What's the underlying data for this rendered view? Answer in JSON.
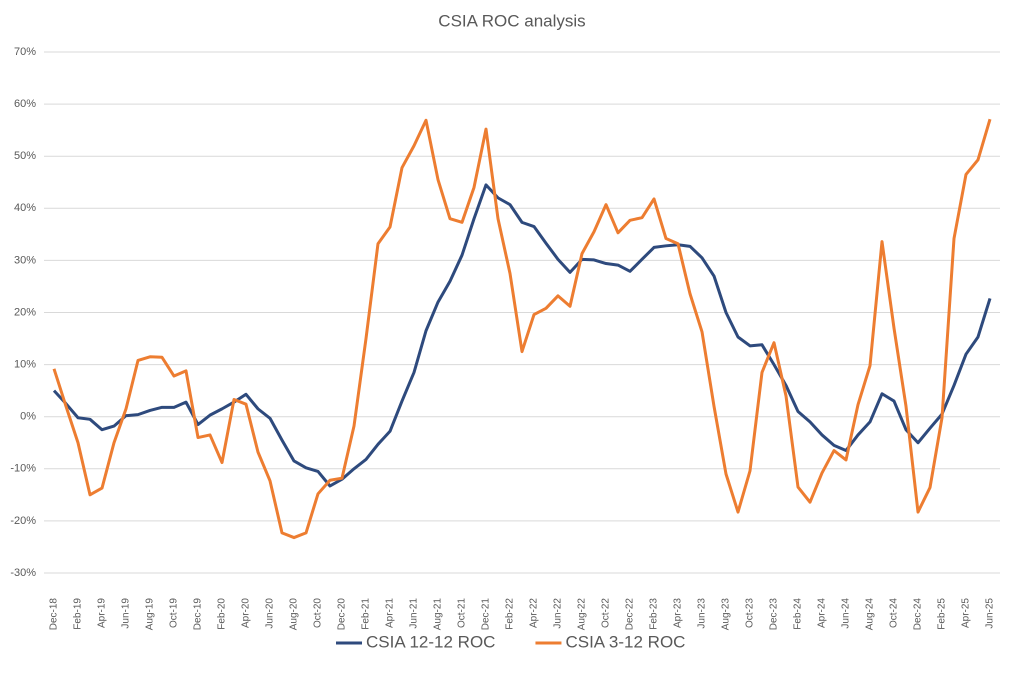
{
  "chart_data": {
    "type": "line",
    "title": "CSIA ROC analysis",
    "categories": [
      "Dec-18",
      null,
      "Feb-19",
      null,
      "Apr-19",
      null,
      "Jun-19",
      null,
      "Aug-19",
      null,
      "Oct-19",
      null,
      "Dec-19",
      null,
      "Feb-20",
      null,
      "Apr-20",
      null,
      "Jun-20",
      null,
      "Aug-20",
      null,
      "Oct-20",
      null,
      "Dec-20",
      null,
      "Feb-21",
      null,
      "Apr-21",
      null,
      "Jun-21",
      null,
      "Aug-21",
      null,
      "Oct-21",
      null,
      "Dec-21",
      null,
      "Feb-22",
      null,
      "Apr-22",
      null,
      "Jun-22",
      null,
      "Aug-22",
      null,
      "Oct-22",
      null,
      "Dec-22",
      null,
      "Feb-23",
      null,
      "Apr-23",
      null,
      "Jun-23",
      null,
      "Aug-23",
      null,
      "Oct-23",
      null,
      "Dec-23",
      null,
      "Feb-24",
      null,
      "Apr-24",
      null,
      "Jun-24",
      null,
      "Aug-24",
      null,
      "Oct-24",
      null,
      "Dec-24",
      null,
      "Feb-25",
      null,
      "Apr-25",
      null,
      "Jun-25"
    ],
    "series": [
      {
        "name": "CSIA 12-12 ROC",
        "color": "#2e4a7d",
        "values": [
          5,
          2.5,
          -0.2,
          -0.5,
          -2.5,
          -1.8,
          0.2,
          0.4,
          1.2,
          1.8,
          1.8,
          2.8,
          -1.5,
          0.3,
          1.5,
          2.8,
          4.3,
          1.5,
          -0.3,
          -4.5,
          -8.5,
          -9.8,
          -10.5,
          -13.3,
          -12,
          -10,
          -8.2,
          -5.3,
          -2.8,
          3,
          8.5,
          16.5,
          22,
          26,
          31,
          38,
          44.5,
          42,
          40.7,
          37.3,
          36.5,
          33.3,
          30.2,
          27.7,
          30.2,
          30.1,
          29.4,
          29.1,
          27.9,
          30.2,
          32.5,
          32.8,
          33,
          32.7,
          30.5,
          27,
          20,
          15.3,
          13.6,
          13.8,
          10,
          6,
          1,
          -1,
          -3.5,
          -5.5,
          -6.5,
          -3.5,
          -1,
          4.4,
          3,
          -2.5,
          -5,
          -2.2,
          0.5,
          6,
          12,
          15.3,
          22.7
        ]
      },
      {
        "name": "CSIA 3-12 ROC",
        "color": "#ed7d31",
        "values": [
          9.2,
          2,
          -5,
          -15,
          -13.7,
          -5,
          1.5,
          10.8,
          11.5,
          11.4,
          7.8,
          8.8,
          -4,
          -3.5,
          -8.8,
          3.3,
          2.4,
          -6.8,
          -12.3,
          -22.3,
          -23.2,
          -22.3,
          -14.8,
          -12.2,
          -11.8,
          -1.8,
          15,
          33.2,
          36.4,
          47.8,
          52,
          56.9,
          45.5,
          38,
          37.3,
          44,
          55.2,
          38,
          27.5,
          12.5,
          19.6,
          20.8,
          23.2,
          21.2,
          31.3,
          35.5,
          40.7,
          35.3,
          37.7,
          38.2,
          41.8,
          34.2,
          33.2,
          23.6,
          16.3,
          2,
          -11,
          -18.3,
          -10.4,
          8.5,
          14.2,
          4,
          -13.5,
          -16.4,
          -10.8,
          -6.5,
          -8.3,
          2.3,
          9.8,
          33.6,
          17,
          2,
          -18.3,
          -13.6,
          -0.2,
          34.2,
          46.5,
          49.3,
          57.1
        ]
      }
    ],
    "ylim": [
      -30,
      70
    ],
    "yticks": [
      {
        "value": -30,
        "label": "-30%"
      },
      {
        "value": -20,
        "label": "-20%"
      },
      {
        "value": -10,
        "label": "-10%"
      },
      {
        "value": 0,
        "label": "0%"
      },
      {
        "value": 10,
        "label": "10%"
      },
      {
        "value": 20,
        "label": "20%"
      },
      {
        "value": 30,
        "label": "30%"
      },
      {
        "value": 40,
        "label": "40%"
      },
      {
        "value": 50,
        "label": "50%"
      },
      {
        "value": 60,
        "label": "60%"
      },
      {
        "value": 70,
        "label": "70%"
      }
    ],
    "grid": true,
    "legend": "bottom"
  }
}
